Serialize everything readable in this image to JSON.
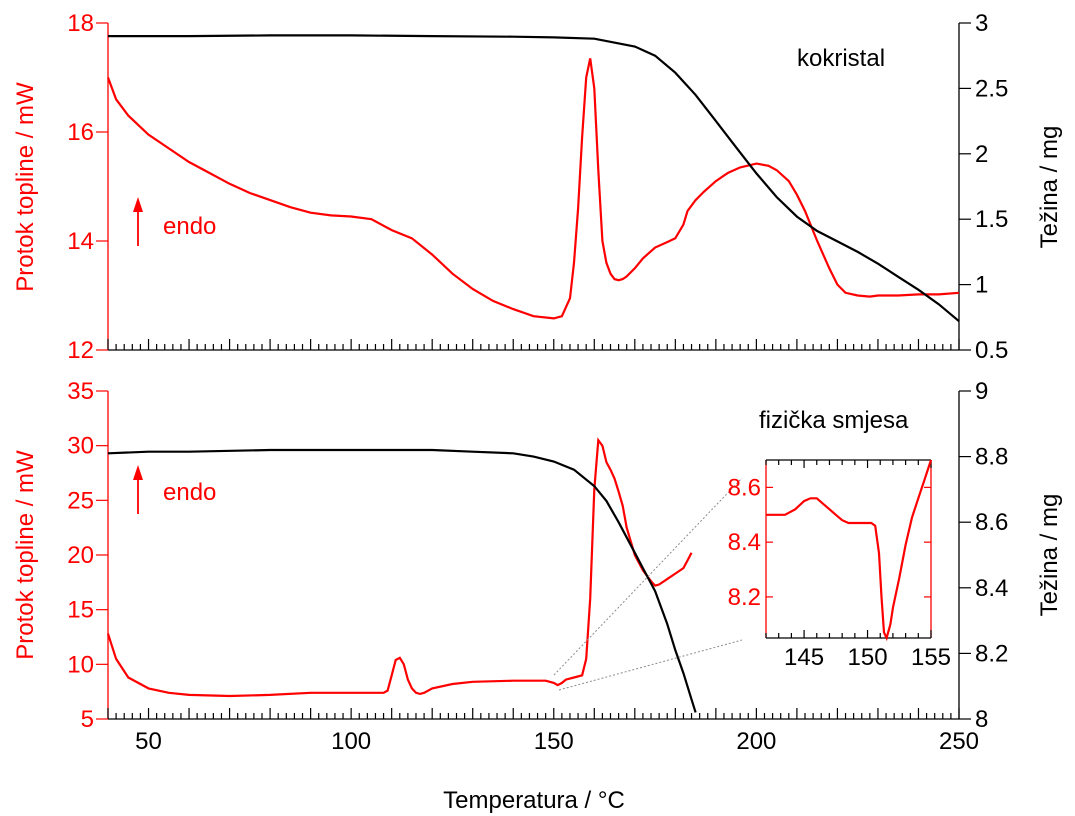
{
  "colors": {
    "dsc": "#ff0000",
    "tga": "#000000",
    "connector": "#8c8c8c"
  },
  "chart_data": [
    {
      "type": "line",
      "annotation_title": "kokristal",
      "endo_label": "endo",
      "endo_arrow_icon": "up-arrow-icon",
      "xlabel": "",
      "xlim": [
        40,
        250
      ],
      "ylabel_left": "Protok topline / mW",
      "ylim_left": [
        12,
        18
      ],
      "yticks_left": [
        "12",
        "14",
        "16",
        "18"
      ],
      "ylabel_right": "Težina / mg",
      "ylim_right": [
        0.5,
        3
      ],
      "yticks_right": [
        "0.5",
        "1",
        "1.5",
        "2",
        "2.5",
        "3"
      ],
      "series": [
        {
          "axis": "left",
          "x": [
            40,
            42,
            45,
            50,
            55,
            60,
            65,
            70,
            75,
            80,
            85,
            90,
            95,
            100,
            105,
            110,
            115,
            120,
            125,
            130,
            135,
            140,
            145,
            150,
            152,
            154,
            155,
            156,
            157,
            158,
            159,
            160,
            161,
            162,
            163,
            164,
            165,
            166,
            167,
            168,
            170,
            172,
            175,
            178,
            180,
            182,
            183,
            185,
            187,
            190,
            193,
            196,
            200,
            203,
            205,
            208,
            210,
            212,
            215,
            218,
            220,
            222,
            225,
            228,
            230,
            235,
            240,
            245,
            250
          ],
          "y": [
            17.0,
            16.6,
            16.3,
            15.95,
            15.7,
            15.45,
            15.25,
            15.05,
            14.88,
            14.75,
            14.62,
            14.52,
            14.47,
            14.45,
            14.4,
            14.2,
            14.05,
            13.75,
            13.4,
            13.12,
            12.9,
            12.75,
            12.62,
            12.58,
            12.62,
            12.95,
            13.6,
            14.6,
            15.9,
            17.0,
            17.35,
            16.8,
            15.3,
            14.0,
            13.6,
            13.4,
            13.3,
            13.28,
            13.3,
            13.35,
            13.5,
            13.68,
            13.88,
            13.98,
            14.05,
            14.3,
            14.55,
            14.75,
            14.9,
            15.1,
            15.25,
            15.35,
            15.42,
            15.38,
            15.3,
            15.1,
            14.85,
            14.55,
            14.0,
            13.5,
            13.2,
            13.05,
            13.0,
            12.98,
            13.0,
            13.0,
            13.02,
            13.02,
            13.05
          ]
        },
        {
          "axis": "right",
          "x": [
            40,
            60,
            80,
            100,
            120,
            140,
            150,
            160,
            170,
            175,
            180,
            185,
            190,
            195,
            200,
            205,
            210,
            215,
            220,
            225,
            230,
            235,
            240,
            245,
            250
          ],
          "y": [
            2.9,
            2.9,
            2.905,
            2.905,
            2.9,
            2.895,
            2.89,
            2.88,
            2.82,
            2.75,
            2.62,
            2.45,
            2.25,
            2.05,
            1.85,
            1.67,
            1.52,
            1.41,
            1.33,
            1.25,
            1.16,
            1.06,
            0.96,
            0.85,
            0.72
          ]
        }
      ]
    },
    {
      "type": "line",
      "annotation_title": "fizička smjesa",
      "endo_label": "endo",
      "endo_arrow_icon": "up-arrow-icon",
      "xlabel": "Temperatura / °C",
      "xlim": [
        40,
        250
      ],
      "xticks": [
        "50",
        "100",
        "150",
        "200",
        "250"
      ],
      "ylabel_left": "Protok topline / mW",
      "ylim_left": [
        5,
        35
      ],
      "yticks_left": [
        "5",
        "10",
        "15",
        "20",
        "25",
        "30",
        "35"
      ],
      "ylabel_right": "Težina / mg",
      "ylim_right": [
        8,
        9
      ],
      "yticks_right": [
        "8",
        "8.2",
        "8.4",
        "8.6",
        "8.8",
        "9"
      ],
      "series": [
        {
          "axis": "left",
          "x": [
            40,
            42,
            45,
            50,
            55,
            60,
            70,
            80,
            90,
            100,
            105,
            108,
            109,
            110,
            111,
            112,
            113,
            114,
            115,
            116,
            117,
            118,
            120,
            125,
            130,
            140,
            145,
            148,
            150,
            151,
            152,
            153,
            155,
            157,
            158,
            159,
            160,
            161,
            162,
            163,
            164,
            165,
            166,
            167,
            168,
            170,
            172,
            174,
            175,
            176,
            178,
            180,
            182,
            183,
            184
          ],
          "y": [
            12.8,
            10.5,
            8.8,
            7.8,
            7.4,
            7.2,
            7.1,
            7.2,
            7.4,
            7.4,
            7.4,
            7.4,
            7.6,
            9.0,
            10.4,
            10.6,
            10.0,
            8.6,
            7.8,
            7.4,
            7.3,
            7.4,
            7.8,
            8.2,
            8.4,
            8.5,
            8.5,
            8.5,
            8.3,
            8.1,
            8.3,
            8.6,
            8.8,
            9.0,
            10.5,
            16.0,
            26.0,
            30.5,
            30.0,
            28.5,
            27.8,
            27.0,
            25.8,
            24.5,
            22.5,
            20.0,
            18.6,
            17.6,
            17.2,
            17.3,
            17.8,
            18.3,
            18.8,
            19.5,
            20.2
          ]
        },
        {
          "axis": "right",
          "x": [
            40,
            50,
            60,
            80,
            100,
            120,
            130,
            140,
            145,
            150,
            155,
            160,
            163,
            166,
            169,
            172,
            175,
            178,
            180,
            182,
            184,
            185
          ],
          "y": [
            8.81,
            8.815,
            8.815,
            8.82,
            8.82,
            8.82,
            8.815,
            8.81,
            8.8,
            8.785,
            8.76,
            8.71,
            8.665,
            8.6,
            8.53,
            8.46,
            8.39,
            8.29,
            8.21,
            8.14,
            8.06,
            8.02
          ]
        }
      ],
      "inset": {
        "xlim": [
          142,
          155
        ],
        "xticks": [
          "145",
          "150",
          "155"
        ],
        "ylim": [
          8.05,
          8.7
        ],
        "yticks": [
          "8.2",
          "8.4",
          "8.6"
        ],
        "x": [
          142,
          142.8,
          143.5,
          144.3,
          145,
          145.5,
          146,
          146.5,
          147,
          147.5,
          148,
          148.5,
          149,
          149.5,
          150,
          150.3,
          150.6,
          150.9,
          151.1,
          151.3,
          151.5,
          151.8,
          152,
          152.5,
          153,
          153.5,
          154,
          154.5,
          155
        ],
        "y": [
          8.5,
          8.5,
          8.5,
          8.52,
          8.55,
          8.56,
          8.56,
          8.54,
          8.52,
          8.5,
          8.48,
          8.47,
          8.47,
          8.47,
          8.47,
          8.47,
          8.46,
          8.36,
          8.2,
          8.07,
          8.05,
          8.1,
          8.16,
          8.27,
          8.39,
          8.49,
          8.56,
          8.63,
          8.7
        ]
      }
    }
  ]
}
